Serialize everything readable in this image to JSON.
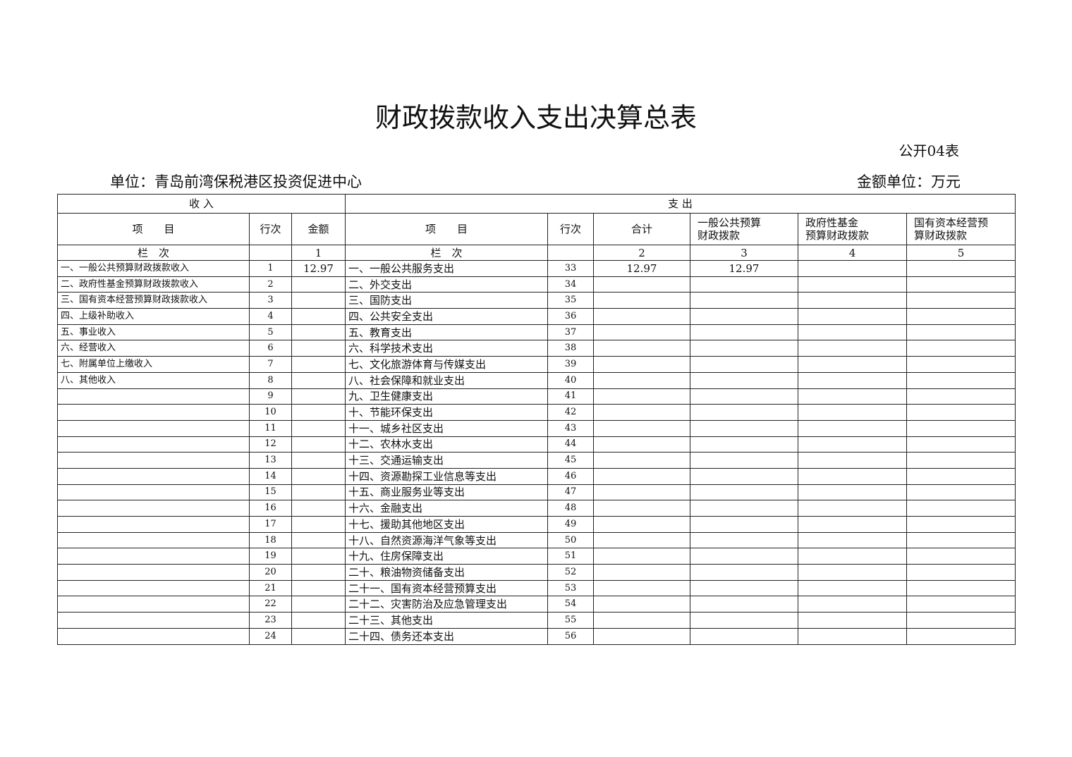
{
  "header": {
    "title": "财政拨款收入支出决算总表",
    "form_no": "公开04表",
    "unit": "单位：青岛前湾保税港区投资促进中心",
    "amount_unit": "金额单位：万元"
  },
  "table": {
    "group_headers": [
      "收 入",
      "支 出"
    ],
    "columns": [
      "项　　目",
      "行次",
      "金额",
      "项　　目",
      "行次",
      "合计",
      "一般公共预算\n财政拨款",
      "政府性基金\n预算财政拨款",
      "国有资本经营预\n算财政拨款"
    ],
    "column_numbers": [
      "栏　次",
      null,
      1,
      "栏　次",
      null,
      2,
      3,
      4,
      5
    ],
    "rows": [
      [
        "一、一般公共预算财政拨款收入",
        1,
        12.97,
        "一、一般公共服务支出",
        33,
        12.97,
        12.97,
        null,
        null
      ],
      [
        "二、政府性基金预算财政拨款收入",
        2,
        null,
        "二、外交支出",
        34,
        null,
        null,
        null,
        null
      ],
      [
        "三、国有资本经营预算财政拨款收入",
        3,
        null,
        "三、国防支出",
        35,
        null,
        null,
        null,
        null
      ],
      [
        "四、上级补助收入",
        4,
        null,
        "四、公共安全支出",
        36,
        null,
        null,
        null,
        null
      ],
      [
        "五、事业收入",
        5,
        null,
        "五、教育支出",
        37,
        null,
        null,
        null,
        null
      ],
      [
        "六、经营收入",
        6,
        null,
        "六、科学技术支出",
        38,
        null,
        null,
        null,
        null
      ],
      [
        "七、附属单位上缴收入",
        7,
        null,
        "七、文化旅游体育与传媒支出",
        39,
        null,
        null,
        null,
        null
      ],
      [
        "八、其他收入",
        8,
        null,
        "八、社会保障和就业支出",
        40,
        null,
        null,
        null,
        null
      ],
      [
        null,
        9,
        null,
        "九、卫生健康支出",
        41,
        null,
        null,
        null,
        null
      ],
      [
        null,
        10,
        null,
        "十、节能环保支出",
        42,
        null,
        null,
        null,
        null
      ],
      [
        null,
        11,
        null,
        "十一、城乡社区支出",
        43,
        null,
        null,
        null,
        null
      ],
      [
        null,
        12,
        null,
        "十二、农林水支出",
        44,
        null,
        null,
        null,
        null
      ],
      [
        null,
        13,
        null,
        "十三、交通运输支出",
        45,
        null,
        null,
        null,
        null
      ],
      [
        null,
        14,
        null,
        "十四、资源勘探工业信息等支出",
        46,
        null,
        null,
        null,
        null
      ],
      [
        null,
        15,
        null,
        "十五、商业服务业等支出",
        47,
        null,
        null,
        null,
        null
      ],
      [
        null,
        16,
        null,
        "十六、金融支出",
        48,
        null,
        null,
        null,
        null
      ],
      [
        null,
        17,
        null,
        "十七、援助其他地区支出",
        49,
        null,
        null,
        null,
        null
      ],
      [
        null,
        18,
        null,
        "十八、自然资源海洋气象等支出",
        50,
        null,
        null,
        null,
        null
      ],
      [
        null,
        19,
        null,
        "十九、住房保障支出",
        51,
        null,
        null,
        null,
        null
      ],
      [
        null,
        20,
        null,
        "二十、粮油物资储备支出",
        52,
        null,
        null,
        null,
        null
      ],
      [
        null,
        21,
        null,
        "二十一、国有资本经营预算支出",
        53,
        null,
        null,
        null,
        null
      ],
      [
        null,
        22,
        null,
        "二十二、灾害防治及应急管理支出",
        54,
        null,
        null,
        null,
        null
      ],
      [
        null,
        23,
        null,
        "二十三、其他支出",
        55,
        null,
        null,
        null,
        null
      ],
      [
        null,
        24,
        null,
        "二十四、债务还本支出",
        56,
        null,
        null,
        null,
        null
      ]
    ]
  }
}
